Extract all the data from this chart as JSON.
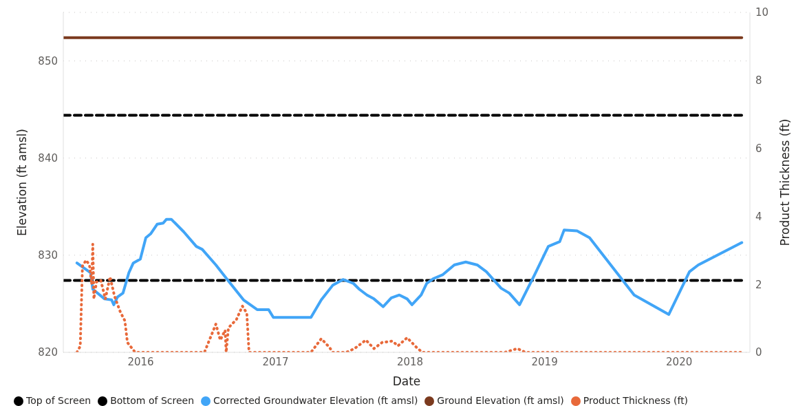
{
  "chart_data": {
    "type": "line",
    "xlabel": "Date",
    "ylabel": "Elevation (ft amsl)",
    "y2label": "Product Thickness (ft)",
    "xlim": [
      "2015-06-05",
      "2020-07-11"
    ],
    "xticks": [
      {
        "value": "2016-01-01",
        "label": "2016"
      },
      {
        "value": "2017-01-01",
        "label": "2017"
      },
      {
        "value": "2018-01-01",
        "label": "2018"
      },
      {
        "value": "2019-01-01",
        "label": "2019"
      },
      {
        "value": "2020-01-01",
        "label": "2020"
      }
    ],
    "ylim": [
      820,
      855
    ],
    "yticks": [
      820,
      830,
      840,
      850
    ],
    "y2lim": [
      0,
      10
    ],
    "y2ticks": [
      0,
      2,
      4,
      6,
      8,
      10
    ],
    "grid": "y",
    "legend": "bottom",
    "marker": "none",
    "series": [
      {
        "name": "Top of Screen",
        "color": "#000000",
        "line_style": "dashed",
        "x": [
          "2015-06-05",
          "2020-06-19"
        ],
        "values": [
          844.4,
          844.4
        ]
      },
      {
        "name": "Bottom of Screen",
        "color": "#000000",
        "line_style": "dashed",
        "x": [
          "2015-06-05",
          "2020-06-19"
        ],
        "values": [
          827.4,
          827.4
        ]
      },
      {
        "name": "Corrected Groundwater Elevation (ft amsl)",
        "color": "#41a5f7",
        "line_style": "solid",
        "x": [
          "2015-07-12",
          "2015-08-18",
          "2015-08-24",
          "2015-09-25",
          "2015-10-14",
          "2015-10-20",
          "2015-10-30",
          "2015-11-14",
          "2015-11-30",
          "2015-12-12",
          "2015-12-31",
          "2016-01-15",
          "2016-01-28",
          "2016-02-15",
          "2016-03-02",
          "2016-03-11",
          "2016-03-24",
          "2016-04-27",
          "2016-05-31",
          "2016-06-16",
          "2016-07-23",
          "2016-08-23",
          "2016-10-06",
          "2016-11-12",
          "2016-12-13",
          "2016-12-26",
          "2017-04-07",
          "2017-05-05",
          "2017-06-05",
          "2017-07-03",
          "2017-07-31",
          "2017-08-16",
          "2017-09-06",
          "2017-09-25",
          "2017-10-20",
          "2017-11-11",
          "2017-12-03",
          "2017-12-24",
          "2018-01-06",
          "2018-01-31",
          "2018-02-15",
          "2018-03-06",
          "2018-03-31",
          "2018-05-01",
          "2018-06-01",
          "2018-07-02",
          "2018-07-27",
          "2018-09-05",
          "2018-09-27",
          "2018-10-25",
          "2018-12-05",
          "2019-01-11",
          "2019-02-11",
          "2019-02-23",
          "2019-03-30",
          "2019-05-03",
          "2019-09-01",
          "2019-12-04",
          "2020-01-29",
          "2020-02-22",
          "2020-06-19"
        ],
        "values": [
          829.2,
          828.2,
          826.5,
          825.5,
          825.4,
          824.9,
          825.7,
          826.1,
          828.2,
          829.2,
          829.6,
          831.8,
          832.2,
          833.2,
          833.3,
          833.7,
          833.7,
          832.4,
          830.9,
          830.6,
          829.0,
          827.5,
          825.4,
          824.4,
          824.4,
          823.6,
          823.6,
          825.4,
          826.9,
          827.5,
          827.1,
          826.5,
          825.9,
          825.5,
          824.7,
          825.6,
          825.9,
          825.5,
          824.9,
          825.9,
          827.1,
          827.6,
          828.0,
          829.0,
          829.3,
          829.0,
          828.3,
          826.6,
          826.1,
          824.9,
          828.0,
          830.9,
          831.4,
          832.6,
          832.5,
          831.8,
          825.9,
          823.9,
          828.3,
          829.0,
          831.3
        ]
      },
      {
        "name": "Ground Elevation (ft amsl)",
        "color": "#7b3a1e",
        "line_style": "solid",
        "x": [
          "2015-06-05",
          "2020-06-19"
        ],
        "values": [
          852.4,
          852.4
        ]
      },
      {
        "name": "Product Thickness (ft)",
        "color": "#e8693a",
        "line_style": "dotted",
        "axis": "y2",
        "x": [
          "2015-07-12",
          "2015-07-21",
          "2015-07-27",
          "2015-08-06",
          "2015-08-15",
          "2015-08-21",
          "2015-08-24",
          "2015-08-27",
          "2015-09-03",
          "2015-09-15",
          "2015-09-27",
          "2015-10-10",
          "2015-10-22",
          "2015-11-07",
          "2015-11-19",
          "2015-11-26",
          "2015-12-17",
          "2016-06-22",
          "2016-07-23",
          "2016-08-04",
          "2016-08-17",
          "2016-08-20",
          "2016-08-26",
          "2016-09-17",
          "2016-10-03",
          "2016-10-15",
          "2016-10-21",
          "2017-04-07",
          "2017-05-05",
          "2017-05-27",
          "2017-06-05",
          "2017-07-12",
          "2017-08-03",
          "2017-09-03",
          "2017-09-25",
          "2017-10-17",
          "2017-11-14",
          "2017-11-29",
          "2017-12-24",
          "2018-01-18",
          "2018-02-03",
          "2018-09-15",
          "2018-10-19",
          "2018-11-10",
          "2020-06-19"
        ],
        "values": [
          0,
          0.18,
          2.54,
          2.71,
          2.57,
          2.0,
          3.18,
          1.57,
          2.07,
          2.11,
          1.57,
          2.22,
          1.65,
          1.18,
          0.93,
          0.29,
          0,
          0,
          0.83,
          0.36,
          0.65,
          0,
          0.72,
          0.97,
          1.36,
          1.15,
          0,
          0,
          0.4,
          0.15,
          0,
          0,
          0.11,
          0.36,
          0.11,
          0.29,
          0.33,
          0.19,
          0.43,
          0.15,
          0,
          0,
          0.11,
          0,
          0
        ]
      }
    ]
  }
}
